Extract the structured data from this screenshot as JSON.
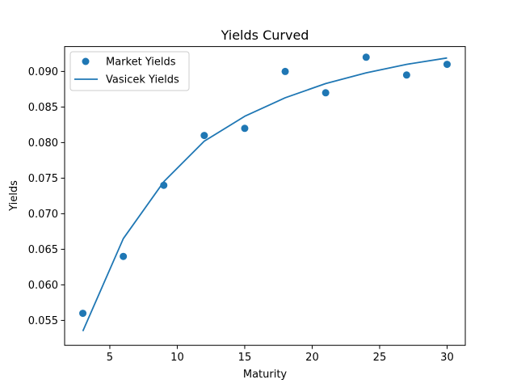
{
  "chart_data": {
    "type": "scatter",
    "title": "Yields Curved",
    "xlabel": "Maturity",
    "ylabel": "Yields",
    "xlim": [
      1.65,
      31.35
    ],
    "ylim": [
      0.0515,
      0.0935
    ],
    "xticks": [
      5,
      10,
      15,
      20,
      25,
      30
    ],
    "yticks": [
      0.055,
      0.06,
      0.065,
      0.07,
      0.075,
      0.08,
      0.085,
      0.09
    ],
    "ytick_labels": [
      "0.055",
      "0.060",
      "0.065",
      "0.070",
      "0.075",
      "0.080",
      "0.085",
      "0.090"
    ],
    "grid": false,
    "legend_position": "top-left",
    "series": [
      {
        "name": "Market Yields",
        "kind": "scatter",
        "color": "#1f77b4",
        "x": [
          3,
          6,
          9,
          12,
          15,
          18,
          21,
          24,
          27,
          30
        ],
        "y": [
          0.056,
          0.064,
          0.074,
          0.081,
          0.082,
          0.09,
          0.087,
          0.092,
          0.0895,
          0.091
        ]
      },
      {
        "name": "Vasicek Yields",
        "kind": "line",
        "color": "#1f77b4",
        "x": [
          3,
          6,
          9,
          12,
          15,
          18,
          21,
          24,
          27,
          30
        ],
        "y": [
          0.0535,
          0.0665,
          0.0745,
          0.0802,
          0.0837,
          0.0863,
          0.0883,
          0.0898,
          0.091,
          0.0919
        ]
      }
    ]
  }
}
